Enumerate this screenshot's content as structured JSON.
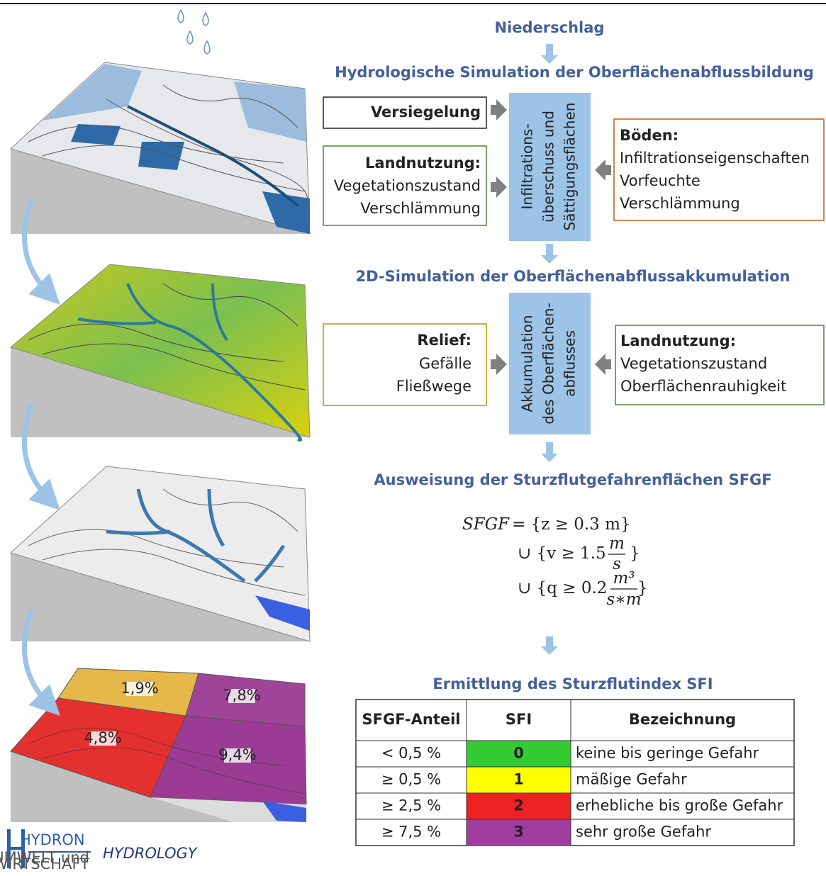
{
  "headings": [
    "Niederschlag",
    "Hydrologische Simulation der Oberflächenabflussbildung",
    "2D-Simulation der Oberflächenabflussakkumulation",
    "Ausweisung der Sturzflutgefahrenflächen SFGF",
    "Ermittlung des Sturzflutindex SFI"
  ],
  "stage1": {
    "left_boxes": [
      {
        "title": "Versiegelung"
      },
      {
        "title": "Landnutzung:",
        "lines": [
          "Vegetationszustand",
          "Verschlämmung"
        ]
      }
    ],
    "center": [
      "Infiltrations-",
      "überschuss und",
      "Sättigungsflächen"
    ],
    "right_box": {
      "title": "Böden:",
      "lines": [
        "Infiltrationseigenschaften",
        "Vorfeuchte",
        "Verschlämmung"
      ]
    }
  },
  "stage2": {
    "left_box": {
      "title": "Relief:",
      "lines": [
        "Gefälle",
        "Fließwege"
      ]
    },
    "center": [
      "Akkumulation",
      "des Oberflächen-",
      "abflusses"
    ],
    "right_box": {
      "title": "Landnutzung:",
      "lines": [
        "Vegetationszustand",
        "Oberflächenrauhigkeit"
      ]
    }
  },
  "formula": {
    "lhs": "SFGF",
    "row1": "= {z ≥ 0.3 m}",
    "row2": {
      "text": "∪ {v ≥ 1.5",
      "num": "m",
      "den": "s",
      "close": "}"
    },
    "row3": {
      "text": "∪ {q ≥ 0.2",
      "num": "m³",
      "den": "s∗m",
      "close": "}"
    }
  },
  "table": {
    "header": [
      "SFGF-Anteil",
      "SFI",
      "Bezeichnung"
    ],
    "rows": [
      {
        "share": "< 0,5 %",
        "sfi": "0",
        "label": "keine bis geringe Gefahr",
        "color": "#33cc33"
      },
      {
        "share": "≥ 0,5 %",
        "sfi": "1",
        "label": "mäßige Gefahr",
        "color": "#ffff00"
      },
      {
        "share": "≥ 2,5 %",
        "sfi": "2",
        "label": "erhebliche bis große Gefahr",
        "color": "#ee2222"
      },
      {
        "share": "≥ 7,5 %",
        "sfi": "3",
        "label": "sehr große Gefahr",
        "color": "#9e3d9e"
      }
    ]
  },
  "map_labels": [
    "1,9%",
    "7,8%",
    "4,8%",
    "9,4%"
  ],
  "logos": {
    "hydron": "HYDRON",
    "hydron_sub": [
      "UMWELT und",
      "WASSERWIRTSCHAFT"
    ],
    "hydrology": "HYDROLOGY"
  }
}
